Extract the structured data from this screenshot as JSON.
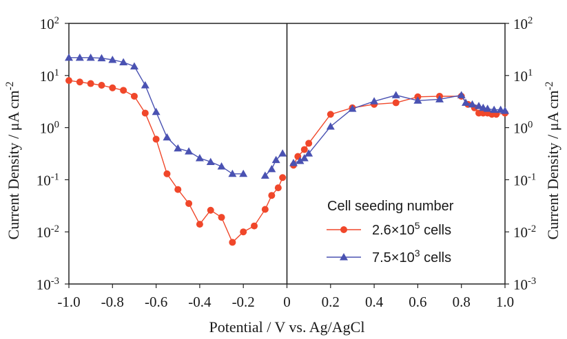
{
  "chart_data": {
    "type": "scatter",
    "xlabel": "Potential / V vs. Ag/AgCl",
    "ylabel": "Current Density / μA cm",
    "ylabel_sup": "-2",
    "xlim": [
      -1.0,
      1.0
    ],
    "ylim": [
      0.001,
      100
    ],
    "y_scale": "log",
    "x_ticks": [
      -1.0,
      -0.8,
      -0.6,
      -0.4,
      -0.2,
      0,
      0.2,
      0.4,
      0.6,
      0.8,
      1.0
    ],
    "x_tick_labels": [
      "-1.0",
      "-0.8",
      "-0.6",
      "-0.4",
      "-0.2",
      "0",
      "0.2",
      "0.4",
      "0.6",
      "0.8",
      "1.0"
    ],
    "y_ticks": [
      {
        "value": 100,
        "base": "10",
        "exp": "2"
      },
      {
        "value": 10,
        "base": "10",
        "exp": "1"
      },
      {
        "value": 1,
        "base": "10",
        "exp": "0"
      },
      {
        "value": 0.1,
        "base": "10",
        "exp": "-1"
      },
      {
        "value": 0.01,
        "base": "10",
        "exp": "-2"
      },
      {
        "value": 0.001,
        "base": "10",
        "exp": "-3"
      }
    ],
    "legend": {
      "title": "Cell seeding number",
      "placement": "bottom-right",
      "entries": [
        {
          "series": 0,
          "prefix": "2.6×10",
          "sup": "5",
          "suffix": " cells"
        },
        {
          "series": 1,
          "prefix": "7.5×10",
          "sup": "3",
          "suffix": " cells"
        }
      ]
    },
    "series": [
      {
        "color": "#f0472a",
        "marker": "circle",
        "segments": [
          [
            [
              -1.0,
              8.0
            ],
            [
              -0.95,
              7.5
            ],
            [
              -0.9,
              7.0
            ],
            [
              -0.85,
              6.5
            ],
            [
              -0.8,
              5.8
            ],
            [
              -0.75,
              5.2
            ],
            [
              -0.7,
              4.0
            ],
            [
              -0.65,
              1.9
            ],
            [
              -0.6,
              0.6
            ],
            [
              -0.55,
              0.13
            ],
            [
              -0.5,
              0.065
            ],
            [
              -0.45,
              0.035
            ],
            [
              -0.4,
              0.014
            ],
            [
              -0.35,
              0.026
            ],
            [
              -0.3,
              0.019
            ],
            [
              -0.25,
              0.0063
            ],
            [
              -0.2,
              0.01
            ],
            [
              -0.15,
              0.013
            ],
            [
              -0.1,
              0.027
            ],
            [
              -0.07,
              0.05
            ],
            [
              -0.04,
              0.07
            ],
            [
              -0.02,
              0.11
            ]
          ],
          [
            [
              0.03,
              0.19
            ],
            [
              0.05,
              0.28
            ],
            [
              0.08,
              0.38
            ],
            [
              0.1,
              0.5
            ],
            [
              0.2,
              1.8
            ],
            [
              0.3,
              2.4
            ],
            [
              0.4,
              2.8
            ],
            [
              0.5,
              3.0
            ],
            [
              0.6,
              3.9
            ],
            [
              0.7,
              4.0
            ],
            [
              0.8,
              4.0
            ],
            [
              0.83,
              2.8
            ],
            [
              0.86,
              2.4
            ],
            [
              0.88,
              1.9
            ],
            [
              0.9,
              1.9
            ],
            [
              0.92,
              1.9
            ],
            [
              0.94,
              1.8
            ],
            [
              0.96,
              1.8
            ],
            [
              1.0,
              1.9
            ]
          ]
        ]
      },
      {
        "color": "#4a52b2",
        "marker": "triangle",
        "segments": [
          [
            [
              -1.0,
              22
            ],
            [
              -0.95,
              22
            ],
            [
              -0.9,
              22
            ],
            [
              -0.85,
              21.5
            ],
            [
              -0.8,
              20
            ],
            [
              -0.75,
              18
            ],
            [
              -0.7,
              15
            ],
            [
              -0.65,
              6.5
            ],
            [
              -0.6,
              2.0
            ],
            [
              -0.55,
              0.65
            ],
            [
              -0.5,
              0.4
            ],
            [
              -0.45,
              0.35
            ],
            [
              -0.4,
              0.26
            ],
            [
              -0.35,
              0.22
            ],
            [
              -0.3,
              0.18
            ],
            [
              -0.25,
              0.13
            ],
            [
              -0.2,
              0.13
            ]
          ],
          [
            [
              -0.1,
              0.12
            ],
            [
              -0.07,
              0.16
            ],
            [
              -0.05,
              0.24
            ],
            [
              -0.02,
              0.32
            ]
          ],
          [
            [
              0.03,
              0.21
            ],
            [
              0.06,
              0.23
            ],
            [
              0.08,
              0.26
            ],
            [
              0.1,
              0.32
            ],
            [
              0.2,
              1.05
            ],
            [
              0.3,
              2.3
            ],
            [
              0.4,
              3.2
            ],
            [
              0.5,
              4.2
            ],
            [
              0.6,
              3.3
            ],
            [
              0.7,
              3.5
            ],
            [
              0.8,
              4.2
            ],
            [
              0.82,
              3.0
            ],
            [
              0.85,
              2.8
            ],
            [
              0.88,
              2.6
            ],
            [
              0.9,
              2.4
            ],
            [
              0.92,
              2.3
            ],
            [
              0.95,
              2.2
            ],
            [
              0.98,
              2.2
            ],
            [
              1.0,
              2.1
            ]
          ]
        ]
      }
    ]
  }
}
